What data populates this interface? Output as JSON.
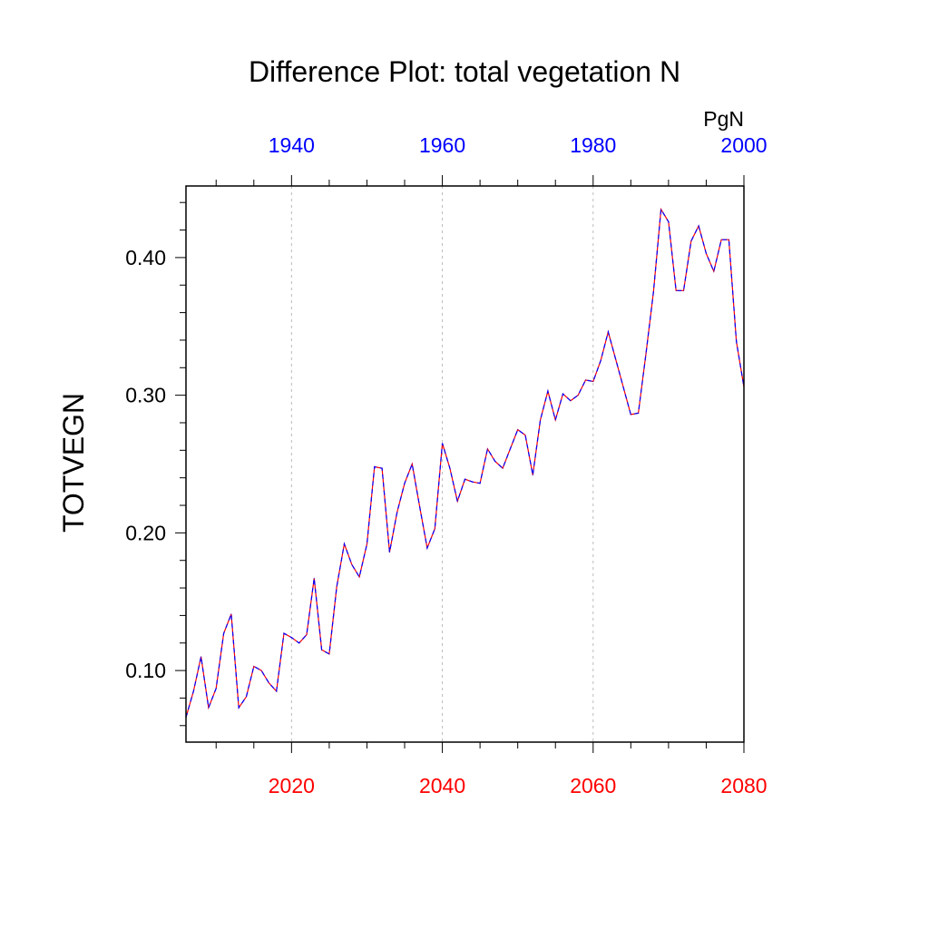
{
  "chart_data": {
    "type": "line",
    "title": "Difference Plot: total vegetation N",
    "ylabel": "TOTVEGN",
    "units": "PgN",
    "ylim": [
      0.048,
      0.452
    ],
    "yticks": [
      0.1,
      0.2,
      0.3,
      0.4
    ],
    "ytick_labels": [
      "0.10",
      "0.20",
      "0.30",
      "0.40"
    ],
    "bottom_axis": {
      "color": "#ff0000",
      "range": [
        2006,
        2080
      ],
      "ticks": [
        2020,
        2040,
        2060,
        2080
      ],
      "tick_labels": [
        "2020",
        "2040",
        "2060",
        "2080"
      ]
    },
    "top_axis": {
      "color": "#0000ff",
      "range": [
        1926,
        2000
      ],
      "ticks": [
        1940,
        1960,
        1980,
        2000
      ],
      "tick_labels": [
        "1940",
        "1960",
        "1980",
        "2000"
      ]
    },
    "grid": "vertical dotted at bottom-axis major ticks",
    "series": [
      {
        "line_colors": [
          "#ff0000",
          "#0000ff"
        ],
        "x": [
          2006,
          2007,
          2008,
          2009,
          2010,
          2011,
          2012,
          2013,
          2014,
          2015,
          2016,
          2017,
          2018,
          2019,
          2020,
          2021,
          2022,
          2023,
          2024,
          2025,
          2026,
          2027,
          2028,
          2029,
          2030,
          2031,
          2032,
          2033,
          2034,
          2035,
          2036,
          2037,
          2038,
          2039,
          2040,
          2041,
          2042,
          2043,
          2044,
          2045,
          2046,
          2047,
          2048,
          2049,
          2050,
          2051,
          2052,
          2053,
          2054,
          2055,
          2056,
          2057,
          2058,
          2059,
          2060,
          2061,
          2062,
          2063,
          2064,
          2065,
          2066,
          2067,
          2068,
          2069,
          2070,
          2071,
          2072,
          2073,
          2074,
          2075,
          2076,
          2077,
          2078,
          2079,
          2080
        ],
        "y": [
          0.066,
          0.085,
          0.11,
          0.073,
          0.087,
          0.127,
          0.141,
          0.073,
          0.081,
          0.103,
          0.1,
          0.091,
          0.085,
          0.127,
          0.124,
          0.12,
          0.126,
          0.167,
          0.115,
          0.112,
          0.161,
          0.192,
          0.177,
          0.168,
          0.192,
          0.248,
          0.247,
          0.186,
          0.215,
          0.236,
          0.25,
          0.219,
          0.189,
          0.203,
          0.265,
          0.247,
          0.223,
          0.239,
          0.237,
          0.236,
          0.261,
          0.252,
          0.247,
          0.261,
          0.275,
          0.271,
          0.242,
          0.282,
          0.303,
          0.282,
          0.301,
          0.296,
          0.3,
          0.311,
          0.31,
          0.325,
          0.346,
          0.326,
          0.306,
          0.286,
          0.287,
          0.33,
          0.375,
          0.435,
          0.426,
          0.376,
          0.376,
          0.412,
          0.423,
          0.403,
          0.39,
          0.413,
          0.413,
          0.339,
          0.306
        ]
      }
    ]
  }
}
